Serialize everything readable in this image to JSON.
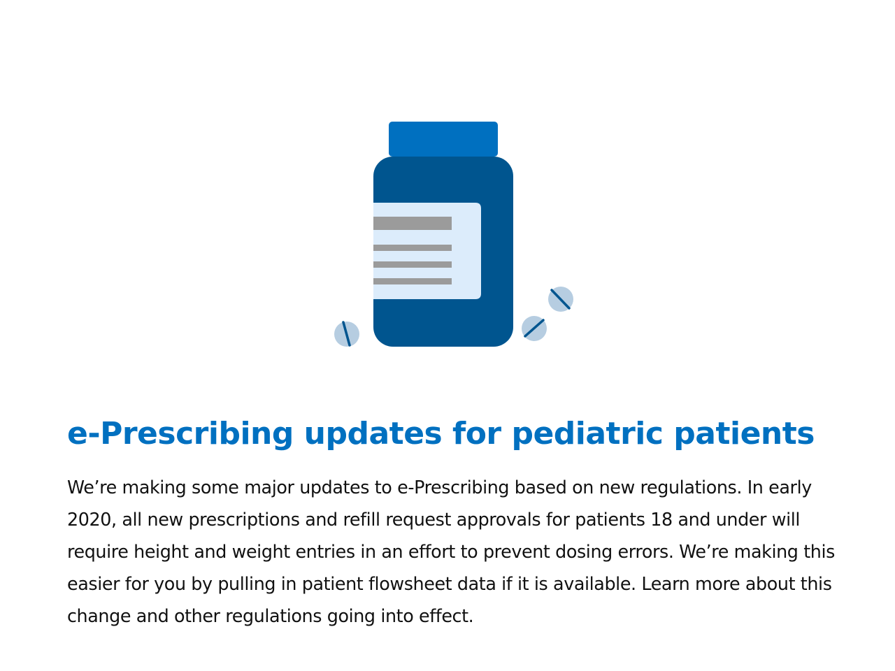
{
  "colors": {
    "title": "#0070c0",
    "bottle_cap": "#0070c0",
    "bottle_body": "#00558f",
    "label": "#dcecfb",
    "label_lines": "#9b9b9b",
    "pill": "#b6cde1",
    "pill_score": "#00558f",
    "body_text": "#111111"
  },
  "illustration": {
    "icon": "pill-bottle-icon",
    "pill_icon": "pill-icon"
  },
  "article": {
    "title": "e-Prescribing updates for pediatric patients",
    "body": "We’re making some major updates to e-Prescribing based on new regulations. In early 2020, all new prescriptions and refill request approvals for patients 18 and under will require height and weight entries in an effort to prevent dosing errors. We’re making this easier for you by pulling in patient flowsheet data if it is available. Learn more about this change and other regulations going into effect."
  }
}
